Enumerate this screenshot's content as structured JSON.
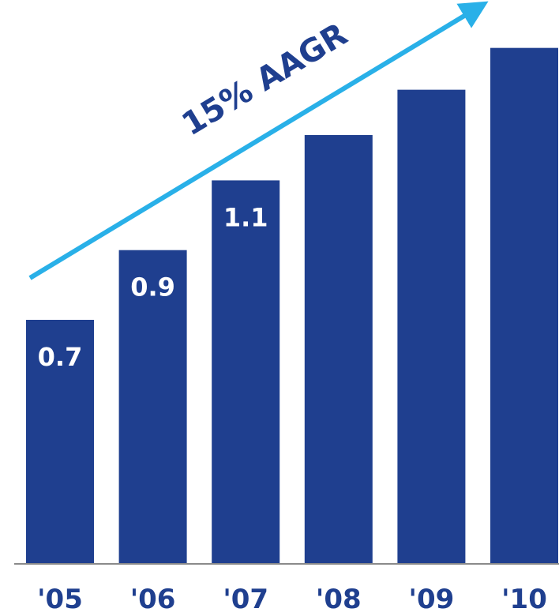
{
  "chart_data": {
    "type": "bar",
    "categories": [
      "'05",
      "'06",
      "'07",
      "'08",
      "'09",
      "'10"
    ],
    "values": [
      0.7,
      0.9,
      1.1,
      1.23,
      1.36,
      1.48
    ],
    "data_labels": [
      "0.7",
      "0.9",
      "1.1",
      "",
      "",
      ""
    ],
    "ylim": [
      0,
      1.52
    ],
    "annotation": "15% AAGR",
    "bar_color": "#1f3f8f",
    "arrow_color": "#29b0e8",
    "label_color": "#1f3f8f",
    "grid": false,
    "legend": "none"
  }
}
